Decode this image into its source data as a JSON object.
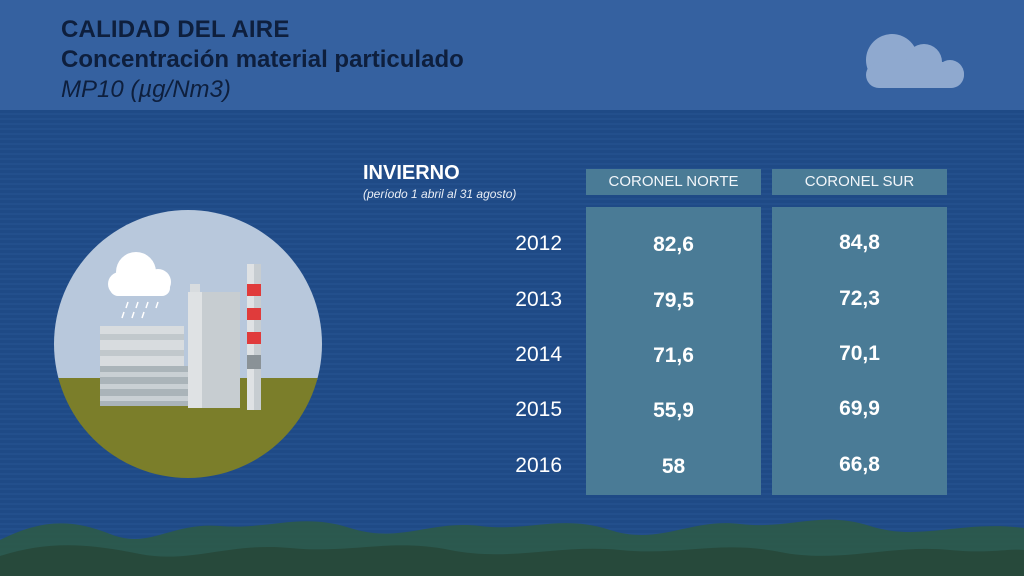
{
  "header": {
    "title": "CALIDAD DEL AIRE",
    "subtitle": "Concentración material particulado",
    "unit": "MP10 (µg/Nm3)"
  },
  "season": {
    "title": "INVIERNO",
    "note": "(período 1 abril al 31 agosto)"
  },
  "columns": [
    "CORONEL NORTE",
    "CORONEL SUR"
  ],
  "rows": [
    {
      "year": "2012",
      "norte": "82,6",
      "sur": "84,8"
    },
    {
      "year": "2013",
      "norte": "79,5",
      "sur": "72,3"
    },
    {
      "year": "2014",
      "norte": "71,6",
      "sur": "70,1"
    },
    {
      "year": "2015",
      "norte": "55,9",
      "sur": "69,9"
    },
    {
      "year": "2016",
      "norte": "58",
      "sur": "66,8"
    }
  ],
  "colors": {
    "header": "#3561a0",
    "background": "#1f4a86",
    "table": "#4a7b96",
    "title_text": "#0e1f3d"
  }
}
